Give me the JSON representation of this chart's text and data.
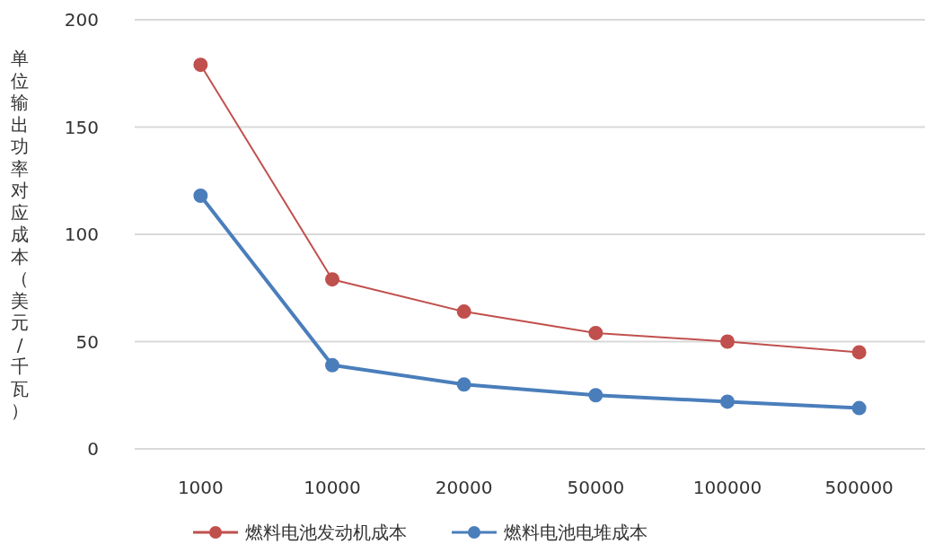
{
  "chart_data": {
    "type": "line",
    "ylabel": "单位输出功率对应成本（美元/千瓦）",
    "categories": [
      "1000",
      "10000",
      "20000",
      "50000",
      "100000",
      "500000"
    ],
    "series": [
      {
        "name": "燃料电池发动机成本",
        "color": "#c0504d",
        "values": [
          179,
          79,
          64,
          54,
          50,
          45
        ]
      },
      {
        "name": "燃料电池电堆成本",
        "color": "#4a7ebb",
        "values": [
          118,
          39,
          30,
          25,
          22,
          19
        ]
      }
    ],
    "ylim": [
      0,
      200
    ],
    "yticks": [
      0,
      50,
      100,
      150,
      200
    ],
    "grid": "y",
    "legend": "bottom",
    "marker": "circle"
  }
}
